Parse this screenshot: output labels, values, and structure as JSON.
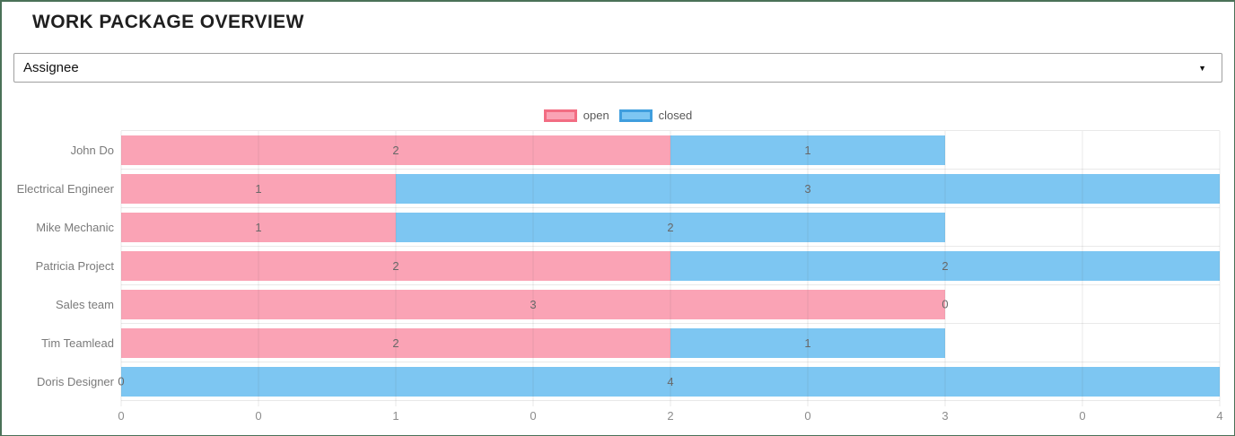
{
  "page": {
    "title": "WORK PACKAGE OVERVIEW"
  },
  "filter": {
    "selected_value": "Assignee",
    "caret_icon": "▼"
  },
  "chart_data": {
    "type": "bar",
    "orientation": "horizontal",
    "stacked": true,
    "title": "",
    "xlabel": "",
    "ylabel": "",
    "categories": [
      "John Do",
      "Electrical Engineer",
      "Mike Mechanic",
      "Patricia Project",
      "Sales team",
      "Tim Teamlead",
      "Doris Designer"
    ],
    "series": [
      {
        "name": "open",
        "fill": "#faa3b5",
        "border": "#f26d83",
        "values": [
          2,
          1,
          1,
          2,
          3,
          2,
          0
        ]
      },
      {
        "name": "closed",
        "fill": "#7dc6f2",
        "border": "#3f9ede",
        "values": [
          1,
          3,
          2,
          2,
          0,
          1,
          4
        ]
      }
    ],
    "xlim": [
      0,
      4
    ],
    "xtick_labels": [
      "0",
      "0",
      "1",
      "0",
      "2",
      "0",
      "3",
      "0",
      "4"
    ],
    "grid": true,
    "legend_position": "top",
    "bar_value_labels_shown": true
  }
}
